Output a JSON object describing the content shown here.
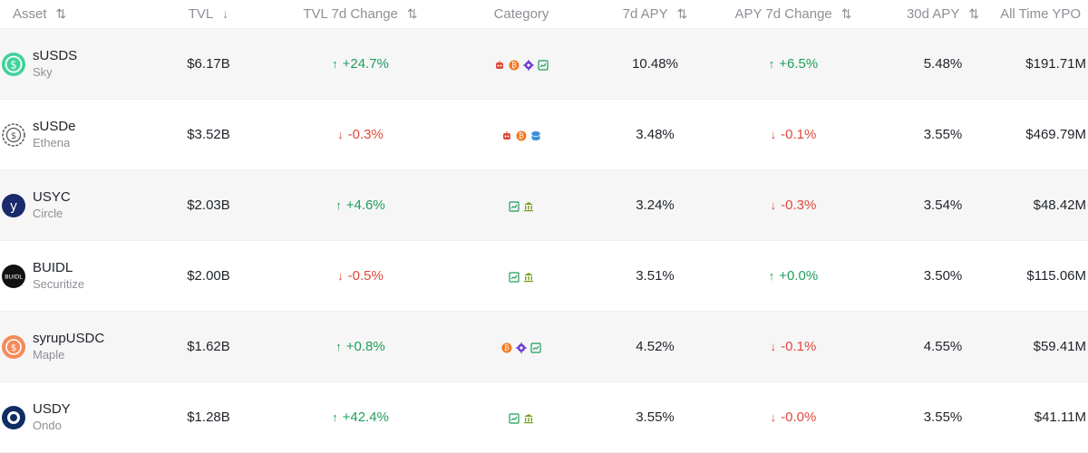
{
  "header": {
    "asset": "Asset",
    "tvl": "TVL",
    "tvl_change": "TVL 7d Change",
    "category": "Category",
    "apy7": "7d APY",
    "apy_change": "APY 7d Change",
    "apy30": "30d APY",
    "ytd": "All Time YPO"
  },
  "colors": {
    "up": "#1f9d5a",
    "down": "#e0473c",
    "muted": "#8d9096"
  },
  "rows": [
    {
      "symbol": "sUSDS",
      "issuer": "Sky",
      "logo_icon": "susds-logo-icon",
      "tvl": "$6.17B",
      "tvl_change": "+24.7%",
      "tvl_change_dir": "up",
      "category_icons": [
        "robot-icon",
        "bitcoin-icon",
        "gear-icon",
        "chart-icon"
      ],
      "apy7": "10.48%",
      "apy_change": "+6.5%",
      "apy_change_dir": "up",
      "apy30": "5.48%",
      "ytd": "$191.71M"
    },
    {
      "symbol": "sUSDe",
      "issuer": "Ethena",
      "logo_icon": "susde-logo-icon",
      "tvl": "$3.52B",
      "tvl_change": "-0.3%",
      "tvl_change_dir": "down",
      "category_icons": [
        "robot-icon",
        "bitcoin-icon",
        "database-icon"
      ],
      "apy7": "3.48%",
      "apy_change": "-0.1%",
      "apy_change_dir": "down",
      "apy30": "3.55%",
      "ytd": "$469.79M"
    },
    {
      "symbol": "USYC",
      "issuer": "Circle",
      "logo_icon": "usyc-logo-icon",
      "tvl": "$2.03B",
      "tvl_change": "+4.6%",
      "tvl_change_dir": "up",
      "category_icons": [
        "chart-icon",
        "bank-icon"
      ],
      "apy7": "3.24%",
      "apy_change": "-0.3%",
      "apy_change_dir": "down",
      "apy30": "3.54%",
      "ytd": "$48.42M"
    },
    {
      "symbol": "BUIDL",
      "issuer": "Securitize",
      "logo_icon": "buidl-logo-icon",
      "tvl": "$2.00B",
      "tvl_change": "-0.5%",
      "tvl_change_dir": "down",
      "category_icons": [
        "chart-icon",
        "bank-icon"
      ],
      "apy7": "3.51%",
      "apy_change": "+0.0%",
      "apy_change_dir": "up",
      "apy30": "3.50%",
      "ytd": "$115.06M"
    },
    {
      "symbol": "syrupUSDC",
      "issuer": "Maple",
      "logo_icon": "syrupusdc-logo-icon",
      "tvl": "$1.62B",
      "tvl_change": "+0.8%",
      "tvl_change_dir": "up",
      "category_icons": [
        "bitcoin-icon",
        "gear-icon",
        "chart-icon"
      ],
      "apy7": "4.52%",
      "apy_change": "-0.1%",
      "apy_change_dir": "down",
      "apy30": "4.55%",
      "ytd": "$59.41M"
    },
    {
      "symbol": "USDY",
      "issuer": "Ondo",
      "logo_icon": "usdy-logo-icon",
      "tvl": "$1.28B",
      "tvl_change": "+42.4%",
      "tvl_change_dir": "up",
      "category_icons": [
        "chart-icon",
        "bank-icon"
      ],
      "apy7": "3.55%",
      "apy_change": "-0.0%",
      "apy_change_dir": "down",
      "apy30": "3.55%",
      "ytd": "$41.11M"
    }
  ]
}
